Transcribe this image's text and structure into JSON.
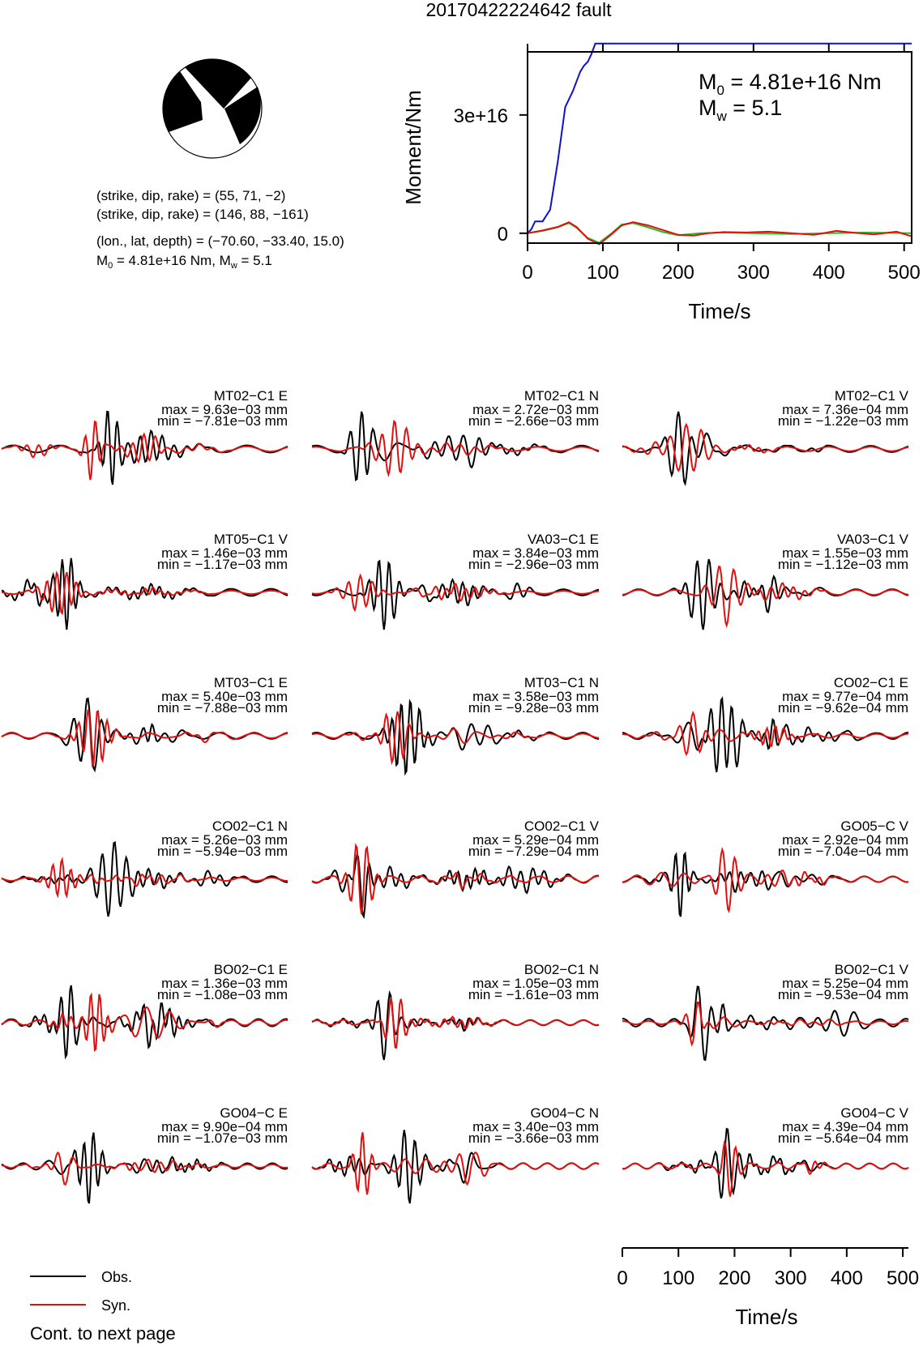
{
  "title": "20170422224642 fault",
  "params": {
    "line1": "(strike, dip, rake) = (55, 71, −2)",
    "line2": "(strike, dip, rake) = (146, 88, −161)",
    "line3": "(lon., lat, depth) = (−70.60, −33.40, 15.0)",
    "m0_prefix": "M",
    "m0_sub": "0",
    "m0_rest": " = 4.81e+16 Nm, M",
    "mw_sub": "w",
    "mw_rest": " = 5.1"
  },
  "colors": {
    "obs": "#000000",
    "syn": "#e01010",
    "moment": "#1010d0",
    "green": "#20c020",
    "olive": "#8c6a20"
  },
  "chart_data": [
    {
      "type": "line",
      "ylabel": "Moment/Nm",
      "xlabel": "Time/s",
      "xlim": [
        0,
        510
      ],
      "ylim": [
        -2500000000000000.0,
        4.6e+16
      ],
      "xticks": [
        "0",
        "100",
        "200",
        "300",
        "400",
        "500"
      ],
      "yticks": [
        "0",
        "3e+16"
      ],
      "m0_label": {
        "main": "M",
        "sub": "0",
        "rest": " = 4.81e+16 Nm"
      },
      "mw_label": {
        "main": "M",
        "sub": "w",
        "rest": " = 5.1"
      },
      "series": [
        {
          "color": "moment",
          "x": [
            0,
            5,
            10,
            20,
            30,
            40,
            50,
            60,
            70,
            75,
            80,
            85,
            90,
            95,
            100,
            150,
            200,
            300,
            400,
            510
          ],
          "y": [
            0,
            1000000000000000.0,
            3000000000000000.0,
            3000000000000000.0,
            6000000000000000.0,
            1.8e+16,
            3.2e+16,
            3.6e+16,
            4.1e+16,
            4.25e+16,
            4.35e+16,
            4.55e+16,
            4.81e+16,
            4.81e+16,
            4.81e+16,
            4.81e+16,
            4.81e+16,
            4.81e+16,
            4.81e+16,
            4.81e+16
          ]
        },
        {
          "color": "green",
          "x": [
            0,
            20,
            40,
            55,
            65,
            80,
            95,
            110,
            125,
            140,
            160,
            180,
            200,
            230,
            260,
            300,
            350,
            400,
            450,
            510
          ],
          "y": [
            0,
            600000000000000.0,
            1500000000000000.0,
            2600000000000000.0,
            1400000000000000.0,
            -1200000000000000.0,
            -2400000000000000.0,
            -260000000000000.0,
            2200000000000000.0,
            2600000000000000.0,
            1500000000000000.0,
            300000000000000.0,
            -500000000000000.0,
            0,
            170000000000000.0,
            0,
            -170000000000000.0,
            0,
            170000000000000.0,
            0
          ]
        },
        {
          "color": "syn",
          "x": [
            0,
            20,
            40,
            55,
            65,
            80,
            95,
            110,
            125,
            140,
            160,
            180,
            200,
            220,
            240,
            260,
            290,
            320,
            350,
            380,
            410,
            430,
            460,
            490,
            510
          ],
          "y": [
            0,
            700000000000000.0,
            1600000000000000.0,
            2800000000000000.0,
            1600000000000000.0,
            -1400000000000000.0,
            -2800000000000000.0,
            -500000000000000.0,
            2000000000000000.0,
            2800000000000000.0,
            2000000000000000.0,
            800000000000000.0,
            -400000000000000.0,
            -600000000000000.0,
            0,
            300000000000000.0,
            200000000000000.0,
            400000000000000.0,
            0,
            -400000000000000.0,
            600000000000000.0,
            200000000000000.0,
            -300000000000000.0,
            400000000000000.0,
            -800000000000000.0
          ]
        }
      ]
    },
    {
      "type": "line",
      "xlabel": "Time/s",
      "xlim": [
        0,
        510
      ],
      "xticks": [
        "0",
        "100",
        "200",
        "300",
        "400",
        "500"
      ],
      "legend": {
        "obs": "Obs.",
        "syn": "Syn."
      },
      "series_keys": [
        "Obs.",
        "Syn."
      ],
      "ylim": [
        -1,
        1
      ],
      "traces": [
        {
          "station": "MT02−C1 E",
          "max": "max = 9.63e−03 mm",
          "min": "min = −7.81e−03 mm"
        },
        {
          "station": "MT02−C1 N",
          "max": "max = 2.72e−03 mm",
          "min": "min = −2.66e−03 mm"
        },
        {
          "station": "MT02−C1 V",
          "max": "max = 7.36e−04 mm",
          "min": "min = −1.22e−03 mm"
        },
        {
          "station": "MT05−C1 V",
          "max": "max = 1.46e−03 mm",
          "min": "min = −1.17e−03 mm"
        },
        {
          "station": "VA03−C1 E",
          "max": "max = 3.84e−03 mm",
          "min": "min = −2.96e−03 mm"
        },
        {
          "station": "VA03−C1 V",
          "max": "max = 1.55e−03 mm",
          "min": "min = −1.12e−03 mm"
        },
        {
          "station": "MT03−C1 E",
          "max": "max = 5.40e−03 mm",
          "min": "min = −7.88e−03 mm"
        },
        {
          "station": "MT03−C1 N",
          "max": "max = 3.58e−03 mm",
          "min": "min = −9.28e−03 mm"
        },
        {
          "station": "CO02−C1 E",
          "max": "max = 9.77e−04 mm",
          "min": "min = −9.62e−04 mm"
        },
        {
          "station": "CO02−C1 N",
          "max": "max = 5.26e−03 mm",
          "min": "min = −5.94e−03 mm"
        },
        {
          "station": "CO02−C1 V",
          "max": "max = 5.29e−04 mm",
          "min": "min = −7.29e−04 mm"
        },
        {
          "station": "GO05−C V",
          "max": "max = 2.92e−04 mm",
          "min": "min = −7.04e−04 mm"
        },
        {
          "station": "BO02−C1 E",
          "max": "max = 1.36e−03 mm",
          "min": "min = −1.08e−03 mm"
        },
        {
          "station": "BO02−C1 N",
          "max": "max = 1.05e−03 mm",
          "min": "min = −1.61e−03 mm"
        },
        {
          "station": "BO02−C1 V",
          "max": "max = 5.25e−04 mm",
          "min": "min = −9.53e−04 mm"
        },
        {
          "station": "GO04−C E",
          "max": "max = 9.90e−04 mm",
          "min": "min = −1.07e−03 mm"
        },
        {
          "station": "GO04−C N",
          "max": "max = 3.40e−03 mm",
          "min": "min = −3.66e−03 mm"
        },
        {
          "station": "GO04−C V",
          "max": "max = 4.39e−04 mm",
          "min": "min = −5.64e−04 mm"
        }
      ]
    }
  ],
  "footer": "Cont. to next page"
}
